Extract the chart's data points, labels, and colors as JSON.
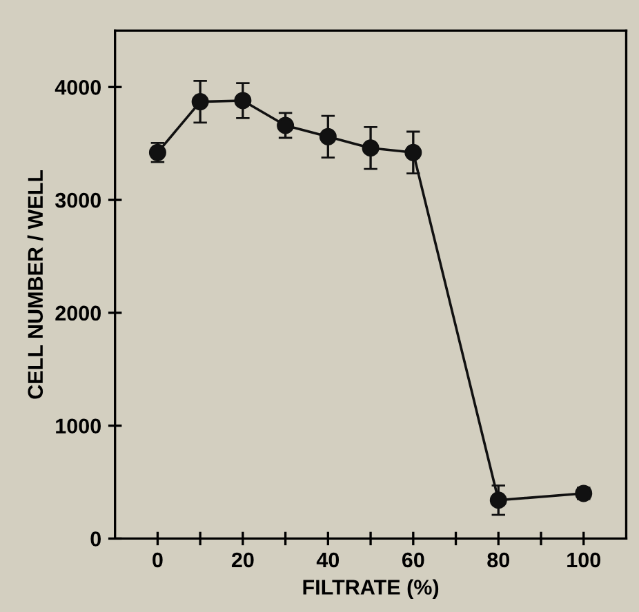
{
  "chart_data": {
    "type": "line",
    "xlabel": "FILTRATE (%)",
    "ylabel": "CELL NUMBER / WELL",
    "x": [
      0,
      10,
      20,
      30,
      40,
      50,
      60,
      80,
      100
    ],
    "series": [
      {
        "color": "#111111",
        "values": [
          3420,
          3870,
          3880,
          3660,
          3560,
          3460,
          3420,
          340,
          400
        ],
        "errors": [
          85,
          185,
          155,
          110,
          185,
          185,
          185,
          130,
          50
        ]
      }
    ],
    "xlim": [
      -10,
      110
    ],
    "ylim": [
      0,
      4500
    ],
    "xticks": [
      0,
      {
        "value": 10,
        "label": null
      },
      20,
      {
        "value": 30,
        "label": null
      },
      40,
      {
        "value": 50,
        "label": null
      },
      60,
      {
        "value": 70,
        "label": null
      },
      80,
      {
        "value": 90,
        "label": null
      },
      100
    ],
    "yticks": [
      0,
      1000,
      2000,
      3000,
      4000
    ],
    "marker": "circle",
    "line_style": "solid",
    "grid": false,
    "legend": false
  }
}
